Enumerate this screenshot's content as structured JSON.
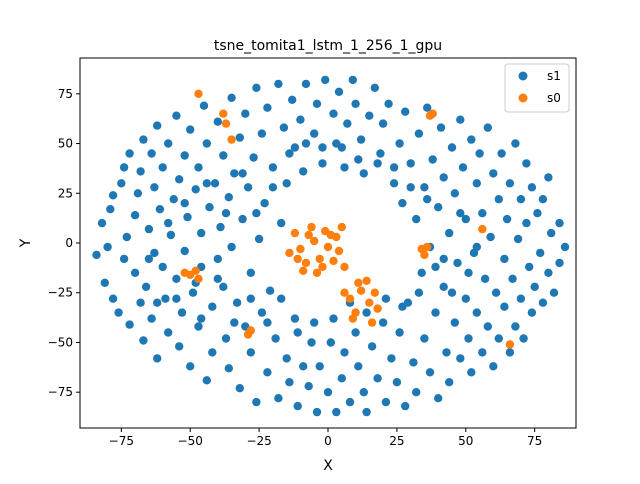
{
  "chart_data": {
    "type": "scatter",
    "title": "tsne_tomita1_lstm_1_256_1_gpu",
    "xlabel": "X",
    "ylabel": "Y",
    "xlim": [
      -90,
      90
    ],
    "ylim": [
      -93,
      93
    ],
    "x_ticks": [
      -75,
      -50,
      -25,
      0,
      25,
      50,
      75
    ],
    "y_ticks": [
      -75,
      -50,
      -25,
      0,
      25,
      50,
      75
    ],
    "grid": false,
    "legend_position": "top-right",
    "series": [
      {
        "name": "s1",
        "color": "#1f77b4",
        "points": [
          [
            -84,
            -6
          ],
          [
            -82,
            10
          ],
          [
            -81,
            -20
          ],
          [
            -80,
            -2
          ],
          [
            -79,
            17
          ],
          [
            -78,
            -28
          ],
          [
            -78,
            24
          ],
          [
            -76,
            -35
          ],
          [
            -75,
            30
          ],
          [
            -74,
            -8
          ],
          [
            -74,
            38
          ],
          [
            -73,
            3
          ],
          [
            -72,
            -41
          ],
          [
            -72,
            45
          ],
          [
            -70,
            -15
          ],
          [
            -70,
            14
          ],
          [
            -69,
            25
          ],
          [
            -68,
            -30
          ],
          [
            -68,
            36
          ],
          [
            -67,
            -49
          ],
          [
            -67,
            52
          ],
          [
            -66,
            -22
          ],
          [
            -65,
            7
          ],
          [
            -64,
            -38
          ],
          [
            -64,
            45
          ],
          [
            -63,
            -5
          ],
          [
            -63,
            28
          ],
          [
            -62,
            59
          ],
          [
            -62,
            -58
          ],
          [
            -61,
            17
          ],
          [
            -60,
            -12
          ],
          [
            -60,
            38
          ],
          [
            -59,
            -28
          ],
          [
            -58,
            -45
          ],
          [
            -58,
            50
          ],
          [
            -57,
            4
          ],
          [
            -56,
            22
          ],
          [
            -55,
            -18
          ],
          [
            -55,
            64
          ],
          [
            -54,
            -52
          ],
          [
            -54,
            32
          ],
          [
            -53,
            -35
          ],
          [
            -52,
            -4
          ],
          [
            -52,
            44
          ],
          [
            -51,
            13
          ],
          [
            -50,
            -62
          ],
          [
            -50,
            57
          ],
          [
            -49,
            -25
          ],
          [
            -48,
            27
          ],
          [
            -47,
            -42
          ],
          [
            -47,
            38
          ],
          [
            -46,
            5
          ],
          [
            -46,
            -12
          ],
          [
            -45,
            69
          ],
          [
            -44,
            -69
          ],
          [
            -44,
            50
          ],
          [
            -43,
            18
          ],
          [
            -42,
            -32
          ],
          [
            -42,
            -55
          ],
          [
            -41,
            30
          ],
          [
            -40,
            -8
          ],
          [
            -40,
            61
          ],
          [
            -39,
            8
          ],
          [
            -38,
            -22
          ],
          [
            -38,
            44
          ],
          [
            -37,
            -48
          ],
          [
            -36,
            23
          ],
          [
            -36,
            -63
          ],
          [
            -35,
            73
          ],
          [
            -35,
            -2
          ],
          [
            -34,
            35
          ],
          [
            -33,
            -30
          ],
          [
            -32,
            53
          ],
          [
            -32,
            -73
          ],
          [
            -31,
            12
          ],
          [
            -30,
            -42
          ],
          [
            -30,
            65
          ],
          [
            -29,
            28
          ],
          [
            -28,
            -15
          ],
          [
            -28,
            -55
          ],
          [
            -27,
            43
          ],
          [
            -26,
            -80
          ],
          [
            -26,
            78
          ],
          [
            -25,
            2
          ],
          [
            -24,
            55
          ],
          [
            -24,
            -35
          ],
          [
            -23,
            20
          ],
          [
            -22,
            -65
          ],
          [
            -22,
            68
          ],
          [
            -21,
            -24
          ],
          [
            -20,
            38
          ],
          [
            -19,
            -48
          ],
          [
            -18,
            80
          ],
          [
            -18,
            -78
          ],
          [
            -17,
            10
          ],
          [
            -16,
            58
          ],
          [
            -15,
            -58
          ],
          [
            -15,
            30
          ],
          [
            -14,
            -70
          ],
          [
            -13,
            72
          ],
          [
            -12,
            -38
          ],
          [
            -12,
            48
          ],
          [
            -11,
            -82
          ],
          [
            -10,
            62
          ],
          [
            -9,
            -62
          ],
          [
            -9,
            36
          ],
          [
            -8,
            80
          ],
          [
            -7,
            -72
          ],
          [
            -6,
            -50
          ],
          [
            -5,
            55
          ],
          [
            -4,
            -85
          ],
          [
            -4,
            70
          ],
          [
            -3,
            -62
          ],
          [
            -2,
            40
          ],
          [
            -1,
            82
          ],
          [
            0,
            -75
          ],
          [
            1,
            -50
          ],
          [
            2,
            65
          ],
          [
            3,
            -85
          ],
          [
            3,
            50
          ],
          [
            4,
            76
          ],
          [
            5,
            -68
          ],
          [
            6,
            -55
          ],
          [
            6,
            38
          ],
          [
            7,
            60
          ],
          [
            8,
            -80
          ],
          [
            9,
            82
          ],
          [
            10,
            -45
          ],
          [
            10,
            70
          ],
          [
            11,
            -62
          ],
          [
            12,
            52
          ],
          [
            13,
            -75
          ],
          [
            13,
            35
          ],
          [
            14,
            -85
          ],
          [
            15,
            64
          ],
          [
            16,
            -52
          ],
          [
            17,
            78
          ],
          [
            18,
            -68
          ],
          [
            19,
            45
          ],
          [
            20,
            -40
          ],
          [
            20,
            60
          ],
          [
            21,
            -80
          ],
          [
            22,
            70
          ],
          [
            23,
            -58
          ],
          [
            24,
            30
          ],
          [
            25,
            -70
          ],
          [
            26,
            50
          ],
          [
            26,
            -45
          ],
          [
            27,
            20
          ],
          [
            28,
            -82
          ],
          [
            28,
            66
          ],
          [
            29,
            -30
          ],
          [
            30,
            40
          ],
          [
            31,
            -60
          ],
          [
            32,
            12
          ],
          [
            32,
            -75
          ],
          [
            33,
            55
          ],
          [
            34,
            -15
          ],
          [
            35,
            28
          ],
          [
            35,
            -48
          ],
          [
            36,
            68
          ],
          [
            37,
            -2
          ],
          [
            37,
            -65
          ],
          [
            38,
            42
          ],
          [
            39,
            -35
          ],
          [
            40,
            18
          ],
          [
            40,
            -78
          ],
          [
            41,
            58
          ],
          [
            42,
            -22
          ],
          [
            42,
            33
          ],
          [
            43,
            -55
          ],
          [
            44,
            5
          ],
          [
            44,
            -70
          ],
          [
            45,
            48
          ],
          [
            46,
            -40
          ],
          [
            46,
            25
          ],
          [
            47,
            -10
          ],
          [
            48,
            62
          ],
          [
            48,
            -58
          ],
          [
            49,
            38
          ],
          [
            50,
            -28
          ],
          [
            50,
            12
          ],
          [
            51,
            -48
          ],
          [
            52,
            52
          ],
          [
            52,
            -65
          ],
          [
            53,
            -5
          ],
          [
            54,
            30
          ],
          [
            54,
            -35
          ],
          [
            55,
            45
          ],
          [
            56,
            -55
          ],
          [
            56,
            15
          ],
          [
            57,
            -18
          ],
          [
            58,
            58
          ],
          [
            58,
            -42
          ],
          [
            59,
            3
          ],
          [
            60,
            35
          ],
          [
            60,
            -62
          ],
          [
            61,
            -25
          ],
          [
            62,
            22
          ],
          [
            62,
            -48
          ],
          [
            63,
            45
          ],
          [
            64,
            -8
          ],
          [
            64,
            -32
          ],
          [
            65,
            12
          ],
          [
            66,
            -55
          ],
          [
            66,
            30
          ],
          [
            67,
            -18
          ],
          [
            68,
            50
          ],
          [
            68,
            -42
          ],
          [
            69,
            2
          ],
          [
            70,
            -28
          ],
          [
            70,
            22
          ],
          [
            71,
            -48
          ],
          [
            72,
            10
          ],
          [
            72,
            40
          ],
          [
            73,
            -12
          ],
          [
            74,
            -35
          ],
          [
            74,
            28
          ],
          [
            75,
            -22
          ],
          [
            76,
            15
          ],
          [
            77,
            -5
          ],
          [
            78,
            -30
          ],
          [
            78,
            22
          ],
          [
            80,
            -15
          ],
          [
            80,
            33
          ],
          [
            81,
            5
          ],
          [
            82,
            -25
          ],
          [
            84,
            10
          ],
          [
            84,
            -10
          ],
          [
            86,
            -2
          ],
          [
            -65,
            -8
          ],
          [
            -62,
            -30
          ],
          [
            -58,
            10
          ],
          [
            -55,
            -28
          ],
          [
            -52,
            20
          ],
          [
            -48,
            -20
          ],
          [
            -46,
            -38
          ],
          [
            -44,
            30
          ],
          [
            -40,
            -18
          ],
          [
            -37,
            15
          ],
          [
            -34,
            -40
          ],
          [
            -31,
            35
          ],
          [
            -28,
            -28
          ],
          [
            -26,
            15
          ],
          [
            -22,
            -40
          ],
          [
            -20,
            28
          ],
          [
            -17,
            -28
          ],
          [
            -14,
            45
          ],
          [
            -11,
            -45
          ],
          [
            -8,
            50
          ],
          [
            -5,
            -40
          ],
          [
            -2,
            48
          ],
          [
            2,
            -38
          ],
          [
            5,
            48
          ],
          [
            8,
            -30
          ],
          [
            11,
            42
          ],
          [
            14,
            -35
          ],
          [
            18,
            40
          ],
          [
            21,
            -28
          ],
          [
            24,
            38
          ],
          [
            27,
            -32
          ],
          [
            30,
            28
          ],
          [
            33,
            -25
          ],
          [
            36,
            22
          ],
          [
            39,
            -12
          ],
          [
            42,
            -8
          ],
          [
            45,
            -25
          ],
          [
            48,
            15
          ],
          [
            51,
            -15
          ],
          [
            54,
            -2
          ]
        ]
      },
      {
        "name": "s0",
        "color": "#ff7f0e",
        "points": [
          [
            -47,
            75
          ],
          [
            -38,
            65
          ],
          [
            -37,
            60
          ],
          [
            -35,
            52
          ],
          [
            -50,
            -16
          ],
          [
            -48,
            -14
          ],
          [
            -47,
            -18
          ],
          [
            -52,
            -15
          ],
          [
            -29,
            -46
          ],
          [
            -28,
            -44
          ],
          [
            34,
            -3
          ],
          [
            35,
            -6
          ],
          [
            36,
            -2
          ],
          [
            37,
            64
          ],
          [
            38,
            65
          ],
          [
            56,
            7
          ],
          [
            66,
            -51
          ],
          [
            -10,
            -3
          ],
          [
            -5,
            1
          ],
          [
            0,
            -2
          ],
          [
            -8,
            -10
          ],
          [
            -3,
            -8
          ],
          [
            2,
            -9
          ],
          [
            -12,
            5
          ],
          [
            -6,
            8
          ],
          [
            -1,
            6
          ],
          [
            3,
            3
          ],
          [
            -14,
            -5
          ],
          [
            4,
            -4
          ],
          [
            -9,
            -14
          ],
          [
            -4,
            -15
          ],
          [
            6,
            -12
          ],
          [
            -11,
            -8
          ],
          [
            1,
            4
          ],
          [
            -7,
            4
          ],
          [
            -2,
            -12
          ],
          [
            5,
            8
          ],
          [
            8,
            -28
          ],
          [
            12,
            -24
          ],
          [
            15,
            -30
          ],
          [
            10,
            -35
          ],
          [
            17,
            -25
          ],
          [
            14,
            -19
          ],
          [
            18,
            -33
          ],
          [
            11,
            -20
          ],
          [
            6,
            -25
          ],
          [
            16,
            -40
          ],
          [
            9,
            -38
          ]
        ]
      }
    ]
  }
}
